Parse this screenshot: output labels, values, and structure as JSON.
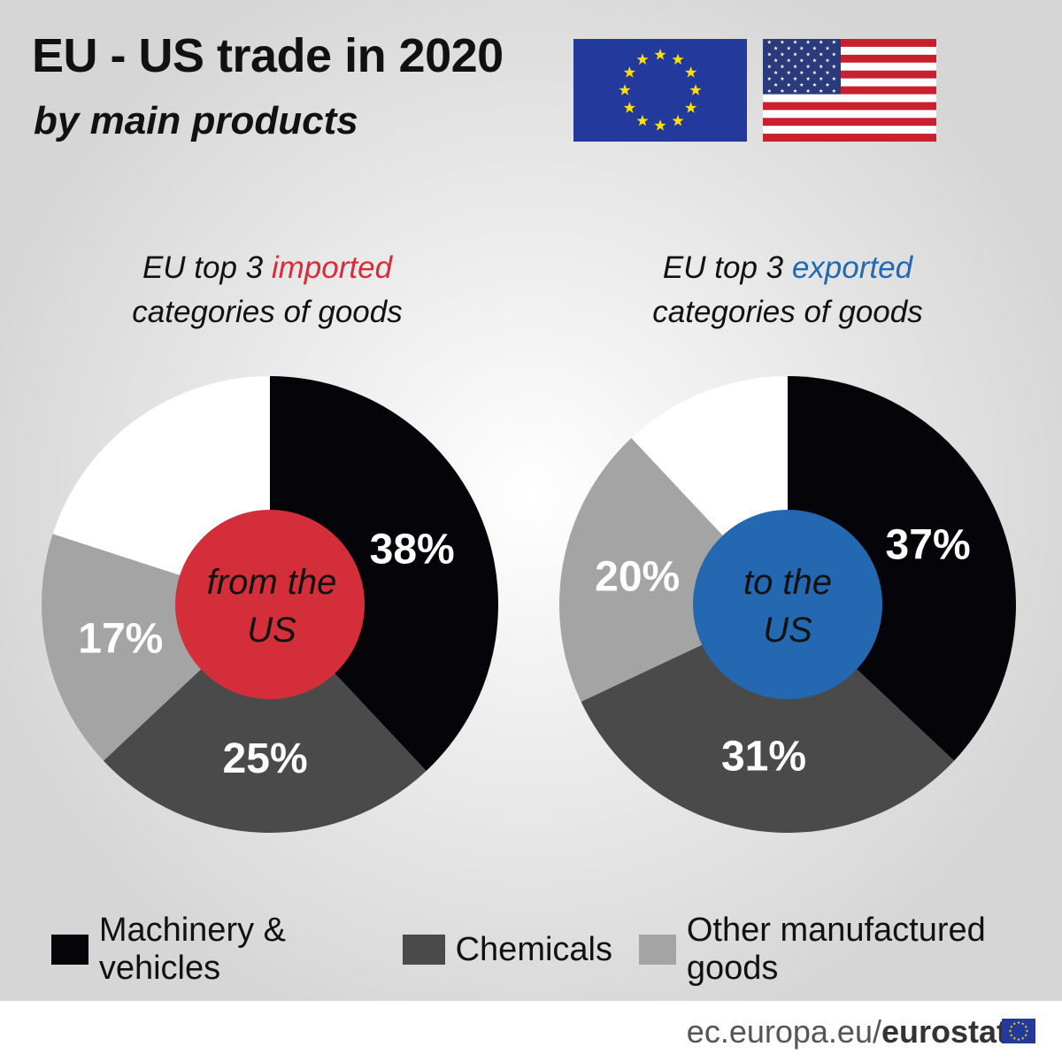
{
  "title": "EU - US trade in 2020",
  "subtitle": "by main products",
  "flags": {
    "eu": "eu-flag",
    "us": "us-flag"
  },
  "left": {
    "heading_pre": "EU top 3 ",
    "heading_accent": "imported",
    "heading_post": "categories of goods",
    "accent_color": "#d42e3a",
    "center_line1": "from the",
    "center_line2": "US"
  },
  "right": {
    "heading_pre": "EU top 3 ",
    "heading_accent": "exported",
    "heading_post": "categories of goods",
    "accent_color": "#2368b0",
    "center_line1": "to the",
    "center_line2": "US"
  },
  "chart_data": [
    {
      "type": "pie",
      "title": "EU top 3 imported categories of goods",
      "center_label": "from the US",
      "categories": [
        "Machinery & vehicles",
        "Chemicals",
        "Other manufactured goods",
        ""
      ],
      "values": [
        38,
        25,
        17,
        20
      ],
      "labels": [
        "38%",
        "25%",
        "17%",
        ""
      ],
      "colors": [
        "#050509",
        "#4a4a4a",
        "#a4a4a4",
        "#ffffff"
      ]
    },
    {
      "type": "pie",
      "title": "EU top 3 exported categories of goods",
      "center_label": "to the US",
      "categories": [
        "Machinery & vehicles",
        "Chemicals",
        "Other manufactured goods",
        ""
      ],
      "values": [
        37,
        31,
        20,
        12
      ],
      "labels": [
        "37%",
        "31%",
        "20%",
        ""
      ],
      "colors": [
        "#050509",
        "#4a4a4a",
        "#a4a4a4",
        "#ffffff"
      ]
    }
  ],
  "legend": [
    {
      "label": "Machinery & vehicles",
      "color": "#050509"
    },
    {
      "label": "Chemicals",
      "color": "#4a4a4a"
    },
    {
      "label": "Other manufactured goods",
      "color": "#a4a4a4"
    }
  ],
  "footer": {
    "site": "ec.europa.eu/",
    "brand": "eurostat"
  }
}
